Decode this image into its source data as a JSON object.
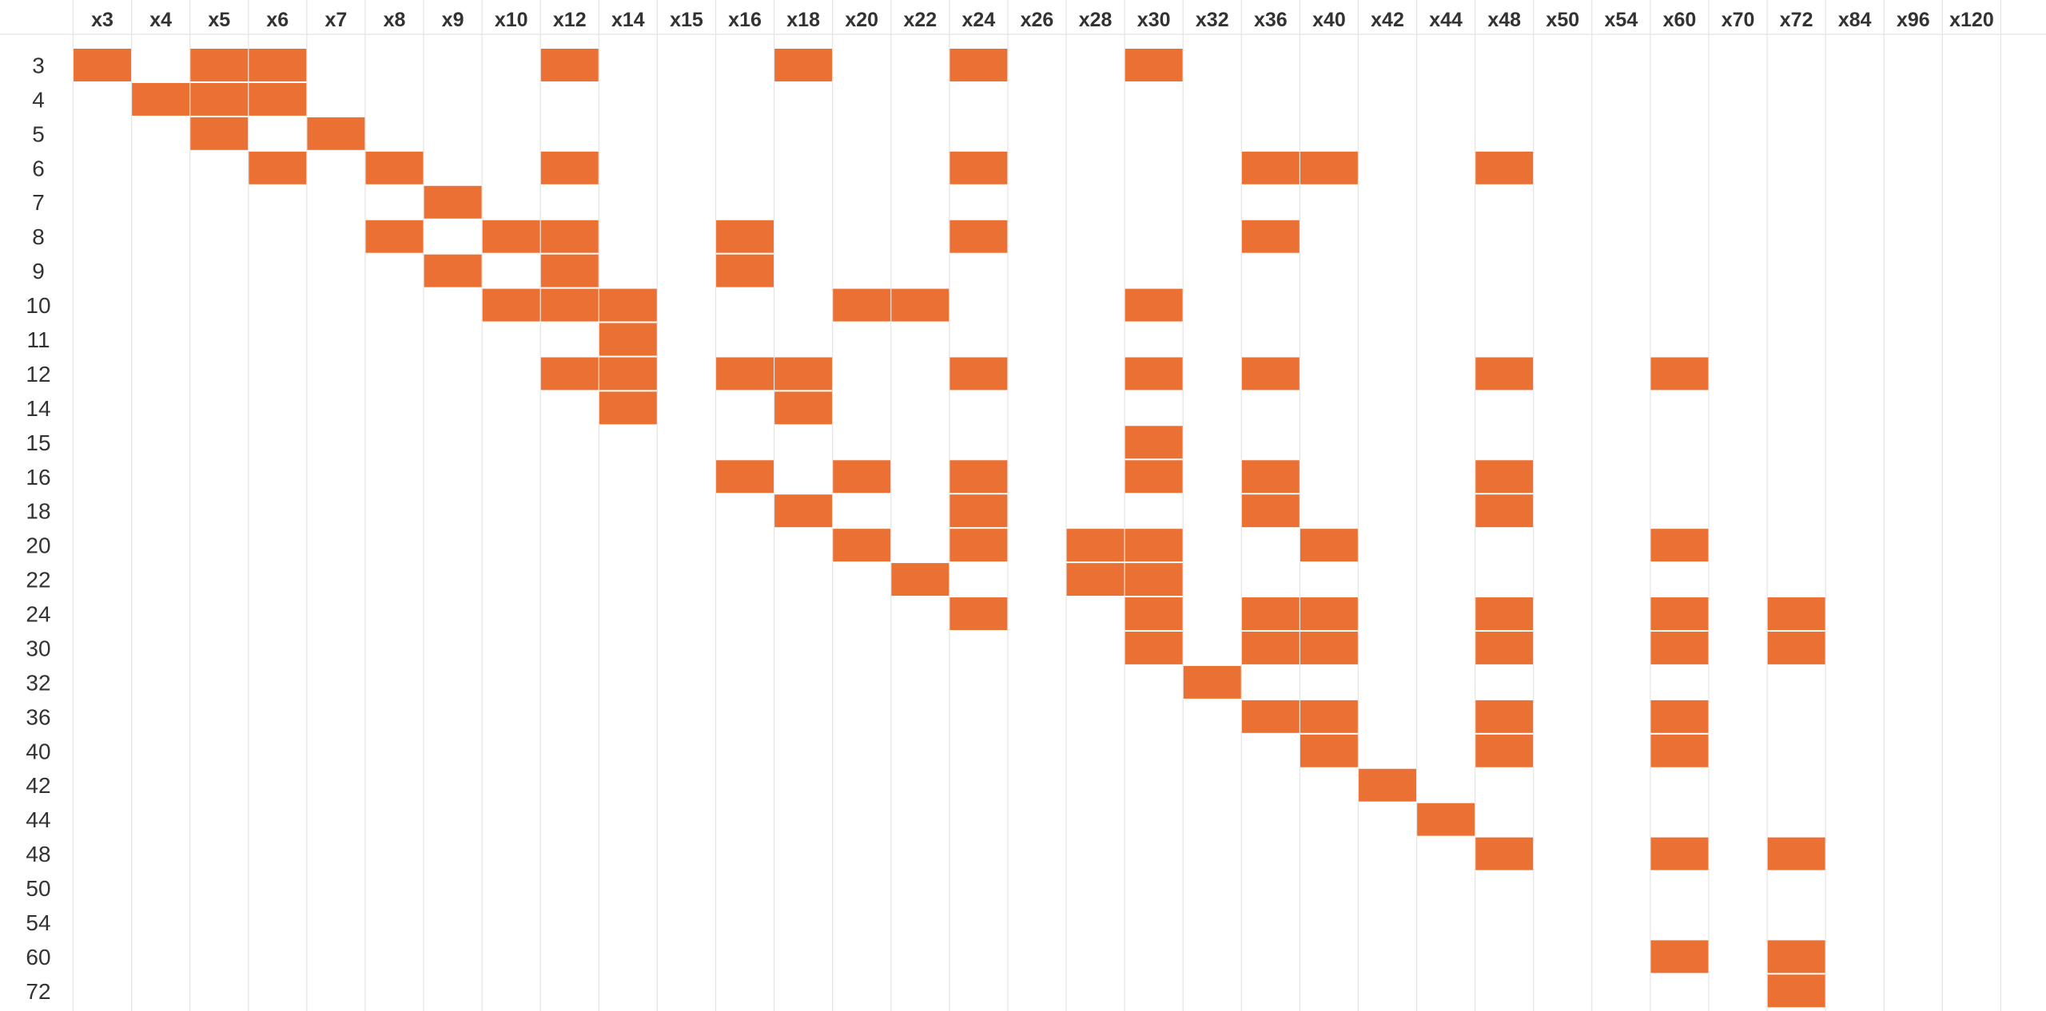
{
  "chart_data": {
    "type": "heatmap",
    "title": "",
    "xlabel": "",
    "ylabel": "",
    "grid": true,
    "legend": "none",
    "cell_color": "#ea7133",
    "grid_color": "#e4e4e4",
    "columns": [
      "x3",
      "x4",
      "x5",
      "x6",
      "x7",
      "x8",
      "x9",
      "x10",
      "x12",
      "x14",
      "x15",
      "x16",
      "x18",
      "x20",
      "x22",
      "x24",
      "x26",
      "x28",
      "x30",
      "x32",
      "x36",
      "x40",
      "x42",
      "x44",
      "x48",
      "x50",
      "x54",
      "x60",
      "x70",
      "x72",
      "x84",
      "x96",
      "x120"
    ],
    "rows": [
      "3",
      "4",
      "5",
      "6",
      "7",
      "8",
      "9",
      "10",
      "11",
      "12",
      "14",
      "15",
      "16",
      "18",
      "20",
      "22",
      "24",
      "30",
      "32",
      "36",
      "40",
      "42",
      "44",
      "48",
      "50",
      "54",
      "60",
      "72"
    ],
    "filled": [
      {
        "row": "3",
        "cols": [
          "x3",
          "x5",
          "x6",
          "x12",
          "x18",
          "x24",
          "x30"
        ]
      },
      {
        "row": "4",
        "cols": [
          "x4",
          "x5",
          "x6"
        ]
      },
      {
        "row": "5",
        "cols": [
          "x5",
          "x7"
        ]
      },
      {
        "row": "6",
        "cols": [
          "x6",
          "x8",
          "x12",
          "x24",
          "x36",
          "x40",
          "x48"
        ]
      },
      {
        "row": "7",
        "cols": [
          "x9"
        ]
      },
      {
        "row": "8",
        "cols": [
          "x8",
          "x10",
          "x12",
          "x16",
          "x24",
          "x36"
        ]
      },
      {
        "row": "9",
        "cols": [
          "x9",
          "x12",
          "x16"
        ]
      },
      {
        "row": "10",
        "cols": [
          "x10",
          "x12",
          "x14",
          "x20",
          "x22",
          "x30"
        ]
      },
      {
        "row": "11",
        "cols": [
          "x14"
        ]
      },
      {
        "row": "12",
        "cols": [
          "x12",
          "x14",
          "x16",
          "x18",
          "x24",
          "x30",
          "x36",
          "x48",
          "x60"
        ]
      },
      {
        "row": "14",
        "cols": [
          "x14",
          "x18"
        ]
      },
      {
        "row": "15",
        "cols": [
          "x30"
        ]
      },
      {
        "row": "16",
        "cols": [
          "x16",
          "x20",
          "x24",
          "x30",
          "x36",
          "x48"
        ]
      },
      {
        "row": "18",
        "cols": [
          "x18",
          "x24",
          "x36",
          "x48"
        ]
      },
      {
        "row": "20",
        "cols": [
          "x20",
          "x24",
          "x28",
          "x30",
          "x40",
          "x60"
        ]
      },
      {
        "row": "22",
        "cols": [
          "x22",
          "x28",
          "x30"
        ]
      },
      {
        "row": "24",
        "cols": [
          "x24",
          "x30",
          "x36",
          "x40",
          "x48",
          "x60",
          "x72"
        ]
      },
      {
        "row": "30",
        "cols": [
          "x30",
          "x36",
          "x40",
          "x48",
          "x60",
          "x72"
        ]
      },
      {
        "row": "32",
        "cols": [
          "x32"
        ]
      },
      {
        "row": "36",
        "cols": [
          "x36",
          "x40",
          "x48",
          "x60"
        ]
      },
      {
        "row": "40",
        "cols": [
          "x40",
          "x48",
          "x60"
        ]
      },
      {
        "row": "42",
        "cols": [
          "x42"
        ]
      },
      {
        "row": "44",
        "cols": [
          "x44"
        ]
      },
      {
        "row": "48",
        "cols": [
          "x48",
          "x60",
          "x72"
        ]
      },
      {
        "row": "50",
        "cols": []
      },
      {
        "row": "54",
        "cols": []
      },
      {
        "row": "60",
        "cols": [
          "x60",
          "x72"
        ]
      },
      {
        "row": "72",
        "cols": [
          "x72"
        ]
      }
    ]
  }
}
